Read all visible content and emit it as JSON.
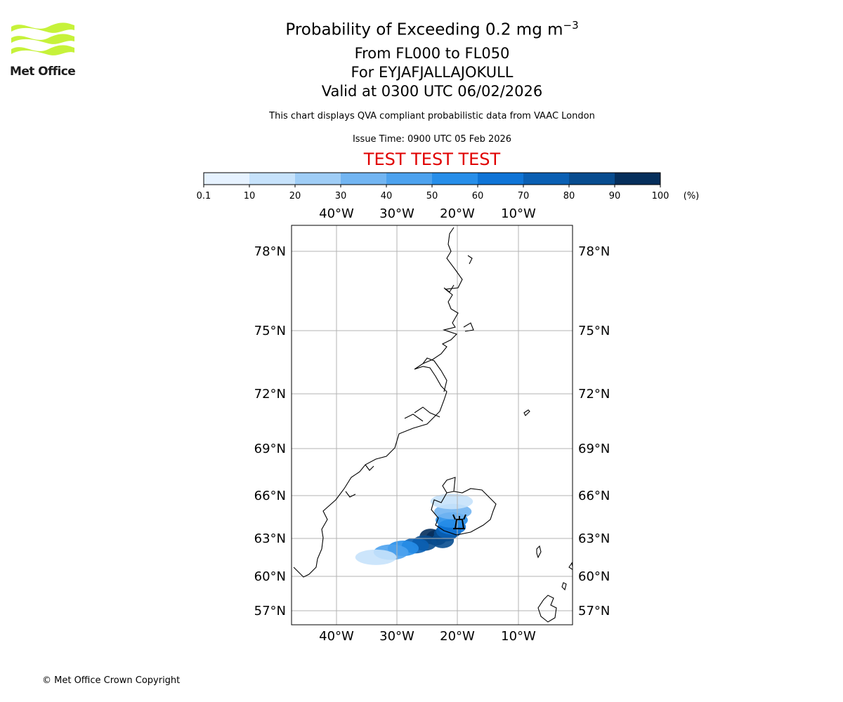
{
  "header": {
    "title_prefix": "Probability of Exceeding 0.2 mg m",
    "title_exponent": "−3",
    "level_range": "From FL000 to FL050",
    "volcano_line": "For EYJAFJALLAJOKULL",
    "valid_time": "Valid at 0300 UTC 06/02/2026",
    "caption": "This chart displays QVA compliant probabilistic data from VAAC London",
    "issue_time": "Issue Time: 0900 UTC 05 Feb 2026",
    "test_banner": "TEST TEST TEST"
  },
  "logo": {
    "text": "Met Office",
    "icon": "met-office-waves-icon"
  },
  "colorbar": {
    "ticks": [
      "0.1",
      "10",
      "20",
      "30",
      "40",
      "50",
      "60",
      "70",
      "80",
      "90",
      "100"
    ],
    "unit": "(%)",
    "colors": [
      "#e6f2ff",
      "#c6e2fb",
      "#9fcdf6",
      "#72b5f2",
      "#4da2ee",
      "#278ee9",
      "#0f74d6",
      "#0a5fb3",
      "#084c8f",
      "#062f5c"
    ]
  },
  "map": {
    "lon_labels": [
      "40°W",
      "30°W",
      "20°W",
      "10°W"
    ],
    "lat_labels": [
      "78°N",
      "75°N",
      "72°N",
      "69°N",
      "66°N",
      "63°N",
      "60°N",
      "57°N"
    ],
    "source_marker": "volcano-triangle-icon"
  },
  "map_data": {
    "volcano": {
      "name": "EYJAFJALLAJOKULL",
      "lat": 63.63,
      "lon": -19.62
    },
    "plume_cells": [
      {
        "lat": 63.0,
        "lon": -23.5,
        "prob": 95
      },
      {
        "lat": 63.1,
        "lon": -24.5,
        "prob": 92
      },
      {
        "lat": 62.8,
        "lon": -22.5,
        "prob": 88
      },
      {
        "lat": 63.3,
        "lon": -22.0,
        "prob": 85
      },
      {
        "lat": 62.6,
        "lon": -25.5,
        "prob": 80
      },
      {
        "lat": 63.5,
        "lon": -21.5,
        "prob": 78
      },
      {
        "lat": 62.4,
        "lon": -27.0,
        "prob": 70
      },
      {
        "lat": 63.8,
        "lon": -21.0,
        "prob": 65
      },
      {
        "lat": 62.2,
        "lon": -29.0,
        "prob": 55
      },
      {
        "lat": 64.3,
        "lon": -21.0,
        "prob": 50
      },
      {
        "lat": 61.9,
        "lon": -31.0,
        "prob": 40
      },
      {
        "lat": 64.9,
        "lon": -20.8,
        "prob": 30
      },
      {
        "lat": 61.5,
        "lon": -33.5,
        "prob": 15
      },
      {
        "lat": 65.6,
        "lon": -21.0,
        "prob": 10
      }
    ]
  }
}
